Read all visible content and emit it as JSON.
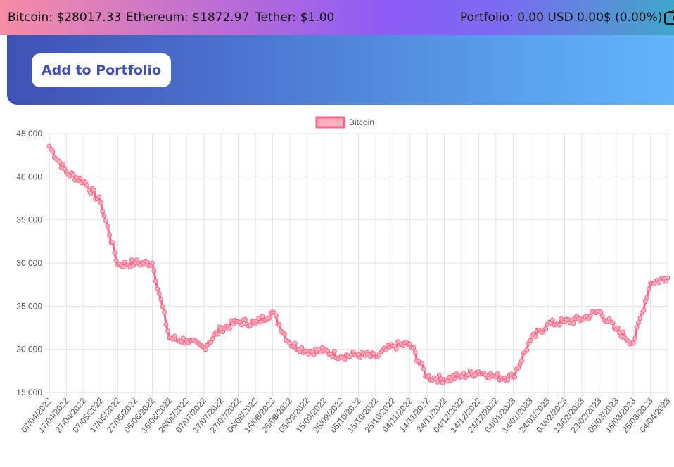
{
  "ticker": {
    "bitcoin": "Bitcoin: $28017.33",
    "ethereum": "Ethereum: $1872.97",
    "tether": "Tether: $1.00",
    "portfolio": "Portfolio: 0.00 USD 0.00$ (0.00%)",
    "wallet_icon": "wallet-icon"
  },
  "hero": {
    "button_label": "Add to Portfolio"
  },
  "colors": {
    "line": "#ff6384",
    "fill": "#ffb1c1",
    "grid": "#e5e5e5",
    "button_text": "#3f51b5"
  },
  "chart_data": {
    "type": "line",
    "legend": "top-center",
    "series": [
      {
        "name": "Bitcoin"
      }
    ],
    "ylim": [
      15000,
      45000
    ],
    "yticks": [
      "45 000",
      "40 000",
      "35 000",
      "30 000",
      "25 000",
      "20 000",
      "15 000"
    ],
    "categories": [
      "07/04/2022",
      "17/04/2022",
      "27/04/2022",
      "07/05/2022",
      "17/05/2022",
      "27/05/2022",
      "06/06/2022",
      "16/06/2022",
      "26/06/2022",
      "07/07/2022",
      "17/07/2022",
      "27/07/2022",
      "06/08/2022",
      "16/08/2022",
      "26/08/2022",
      "05/09/2022",
      "15/09/2022",
      "25/09/2022",
      "05/10/2022",
      "15/10/2022",
      "25/10/2022",
      "04/11/2022",
      "14/11/2022",
      "24/11/2022",
      "04/12/2022",
      "14/12/2022",
      "24/12/2022",
      "04/01/2023",
      "14/01/2023",
      "24/01/2023",
      "03/02/2023",
      "13/02/2023",
      "23/02/2023",
      "05/03/2023",
      "15/03/2023",
      "25/03/2023",
      "04/04/2023"
    ],
    "key_values": [
      43500,
      40500,
      39500,
      37000,
      29800,
      30000,
      30000,
      21300,
      21000,
      20200,
      22400,
      23200,
      23000,
      24300,
      20700,
      19800,
      19800,
      19200,
      19400,
      19100,
      20400,
      20600,
      16800,
      16500,
      16900,
      17400,
      16800,
      16800,
      21000,
      22900,
      23200,
      23500,
      24400,
      22300,
      20700,
      27700,
      28300
    ]
  }
}
